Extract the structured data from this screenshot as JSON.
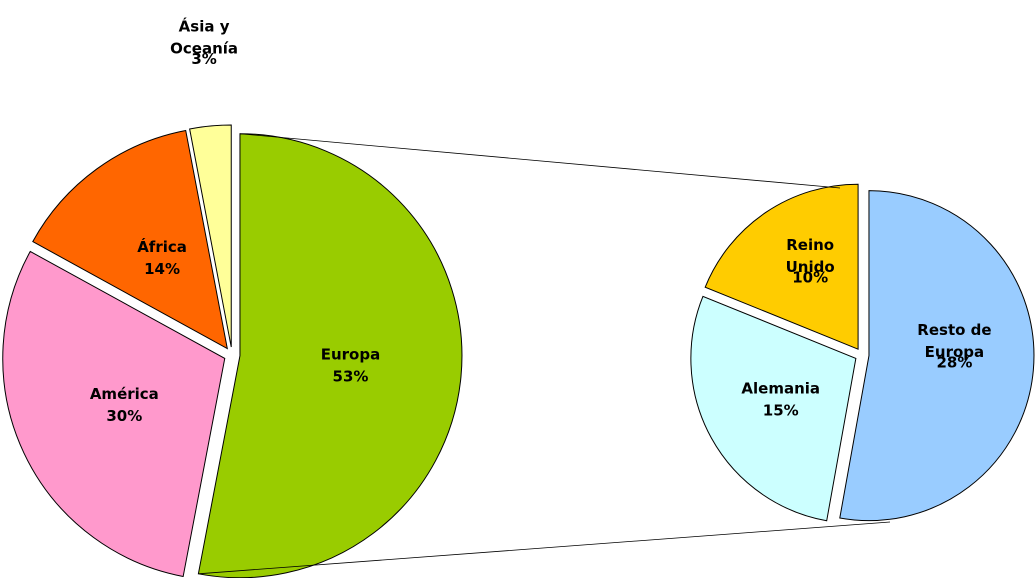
{
  "chart_data": [
    {
      "type": "pie",
      "categories": [
        "Europa",
        "América",
        "África",
        "Ásia y Oceanía"
      ],
      "values": [
        53,
        30,
        14,
        3
      ],
      "value_labels": [
        "53%",
        "30%",
        "14%",
        "3%"
      ],
      "colors": [
        "#99cc00",
        "#ff99cc",
        "#ff6600",
        "#ffff99"
      ]
    },
    {
      "type": "pie",
      "categories": [
        "Resto de Europa",
        "Alemania",
        "Reino Unido"
      ],
      "values": [
        28,
        15,
        10
      ],
      "value_labels": [
        "28%",
        "15%",
        "10%"
      ],
      "colors": [
        "#99ccff",
        "#ccffff",
        "#ffcc00"
      ]
    }
  ]
}
